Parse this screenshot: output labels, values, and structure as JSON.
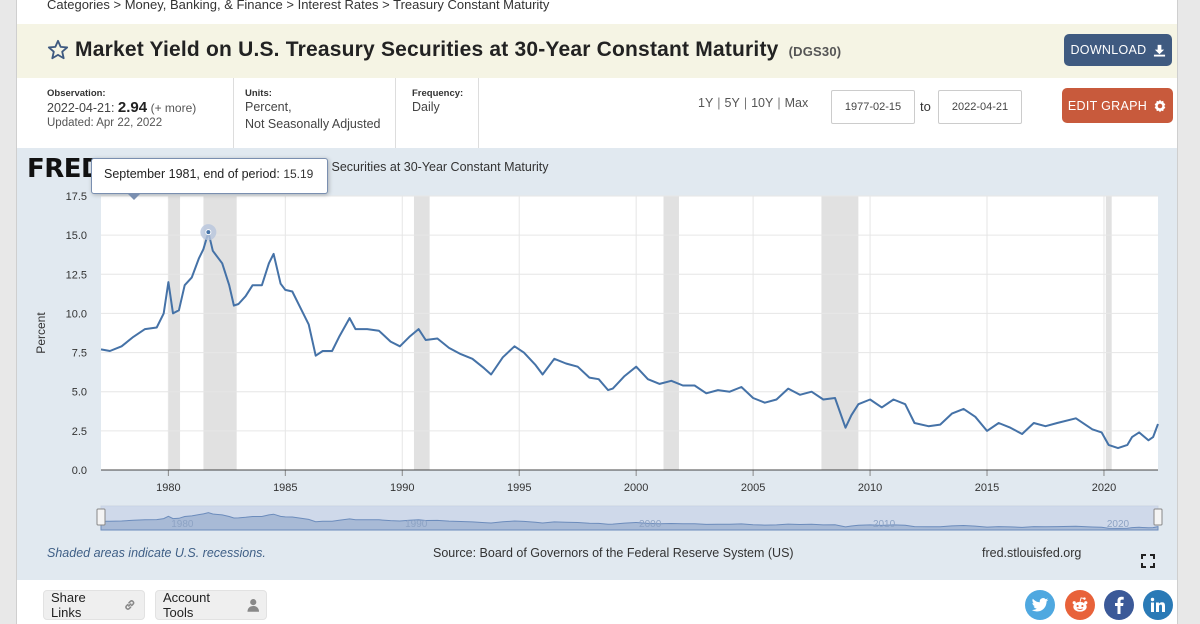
{
  "breadcrumb": [
    "Categories",
    "Money, Banking, & Finance",
    "Interest Rates",
    "Treasury Constant Maturity"
  ],
  "breadcrumb_sep": ">",
  "header": {
    "title": "Market Yield on U.S. Treasury Securities at 30-Year Constant Maturity",
    "series_id": "(DGS30)",
    "download_label": "DOWNLOAD"
  },
  "meta": {
    "observation_label": "Observation:",
    "observation_date": "2022-04-21:",
    "observation_value": "2.94",
    "observation_more": "(+ more)",
    "updated": "Updated: Apr 22, 2022",
    "units_label": "Units:",
    "units_line1": "Percent,",
    "units_line2": "Not Seasonally Adjusted",
    "frequency_label": "Frequency:",
    "frequency_value": "Daily"
  },
  "controls": {
    "ranges": [
      "1Y",
      "5Y",
      "10Y",
      "Max"
    ],
    "range_sep": "|",
    "start_date": "1977-02-15",
    "to_label": "to",
    "end_date": "2022-04-21",
    "edit_label": "EDIT GRAPH"
  },
  "graph": {
    "logo": "FRED",
    "chart_title": "Market Yield on U.S. Treasury Securities at 30-Year Constant Maturity",
    "tooltip_label": "September 1981, end of period:",
    "tooltip_value": "15.19",
    "footer_note": "Shaded areas indicate U.S. recessions.",
    "footer_source": "Source: Board of Governors of the Federal Reserve System (US)",
    "footer_site": "fred.stlouisfed.org",
    "navigator_labels": [
      "1980",
      "1990",
      "2000",
      "2010",
      "2020"
    ]
  },
  "chart_data": {
    "type": "line",
    "title": "Market Yield on U.S. Treasury Securities at 30-Year Constant Maturity",
    "ylabel": "Percent",
    "xlabel": "",
    "xlim": [
      1977.12,
      2022.31
    ],
    "ylim": [
      0,
      17.5
    ],
    "yticks": [
      0.0,
      2.5,
      5.0,
      7.5,
      10.0,
      12.5,
      15.0,
      17.5
    ],
    "ytick_labels": [
      "0.0",
      "2.5",
      "5.0",
      "7.5",
      "10.0",
      "12.5",
      "15.0",
      "17.5"
    ],
    "xticks": [
      1980,
      1985,
      1990,
      1995,
      2000,
      2005,
      2010,
      2015,
      2020
    ],
    "xtick_labels": [
      "1980",
      "1985",
      "1990",
      "1995",
      "2000",
      "2005",
      "2010",
      "2015",
      "2020"
    ],
    "grid": true,
    "recessions": [
      [
        1980.0,
        1980.5
      ],
      [
        1981.5,
        1982.92
      ],
      [
        1990.5,
        1991.17
      ],
      [
        2001.17,
        2001.83
      ],
      [
        2007.92,
        2009.5
      ],
      [
        2020.08,
        2020.33
      ]
    ],
    "highlight": {
      "x": 1981.71,
      "y": 15.19
    },
    "series": [
      {
        "name": "DGS30",
        "color": "#4572a7",
        "x": [
          1977.12,
          1977.5,
          1978.0,
          1978.5,
          1979.0,
          1979.5,
          1979.8,
          1980.0,
          1980.2,
          1980.45,
          1980.7,
          1981.0,
          1981.3,
          1981.5,
          1981.71,
          1981.9,
          1982.0,
          1982.3,
          1982.6,
          1982.8,
          1983.0,
          1983.3,
          1983.6,
          1984.0,
          1984.3,
          1984.5,
          1984.8,
          1985.0,
          1985.3,
          1985.6,
          1986.0,
          1986.3,
          1986.6,
          1987.0,
          1987.3,
          1987.75,
          1988.0,
          1988.5,
          1989.0,
          1989.5,
          1989.9,
          1990.3,
          1990.7,
          1991.0,
          1991.5,
          1992.0,
          1992.5,
          1993.0,
          1993.5,
          1993.8,
          1994.3,
          1994.8,
          1995.2,
          1995.7,
          1996.0,
          1996.5,
          1997.0,
          1997.5,
          1998.0,
          1998.4,
          1998.8,
          1999.0,
          1999.5,
          2000.0,
          2000.5,
          2001.0,
          2001.5,
          2002.0,
          2002.5,
          2003.0,
          2003.5,
          2004.0,
          2004.5,
          2005.0,
          2005.5,
          2006.0,
          2006.5,
          2007.0,
          2007.5,
          2008.0,
          2008.5,
          2008.95,
          2009.2,
          2009.5,
          2010.0,
          2010.5,
          2011.0,
          2011.5,
          2011.9,
          2012.5,
          2013.0,
          2013.5,
          2014.0,
          2014.5,
          2015.0,
          2015.5,
          2016.0,
          2016.5,
          2017.0,
          2017.5,
          2018.0,
          2018.8,
          2019.5,
          2019.9,
          2020.2,
          2020.6,
          2021.0,
          2021.2,
          2021.5,
          2021.9,
          2022.1,
          2022.31
        ],
        "values": [
          7.7,
          7.6,
          7.9,
          8.5,
          9.0,
          9.1,
          10.0,
          12.0,
          10.0,
          10.2,
          11.8,
          12.3,
          13.5,
          14.1,
          15.19,
          14.0,
          13.8,
          13.2,
          11.8,
          10.5,
          10.6,
          11.1,
          11.8,
          11.8,
          13.2,
          13.8,
          11.9,
          11.5,
          11.4,
          10.5,
          9.3,
          7.3,
          7.6,
          7.6,
          8.5,
          9.7,
          9.0,
          9.0,
          8.9,
          8.2,
          7.9,
          8.5,
          9.0,
          8.3,
          8.4,
          7.8,
          7.4,
          7.1,
          6.5,
          6.1,
          7.2,
          7.9,
          7.5,
          6.7,
          6.1,
          7.1,
          6.8,
          6.6,
          5.9,
          5.8,
          5.1,
          5.2,
          6.0,
          6.6,
          5.8,
          5.5,
          5.7,
          5.4,
          5.4,
          4.9,
          5.1,
          5.0,
          5.3,
          4.6,
          4.3,
          4.5,
          5.2,
          4.8,
          5.0,
          4.5,
          4.6,
          2.7,
          3.5,
          4.2,
          4.5,
          4.0,
          4.5,
          4.2,
          3.0,
          2.8,
          2.9,
          3.6,
          3.9,
          3.4,
          2.5,
          3.0,
          2.7,
          2.3,
          3.0,
          2.8,
          3.0,
          3.3,
          2.6,
          2.4,
          1.6,
          1.4,
          1.6,
          2.1,
          2.4,
          1.9,
          2.1,
          2.94
        ]
      }
    ]
  }
}
